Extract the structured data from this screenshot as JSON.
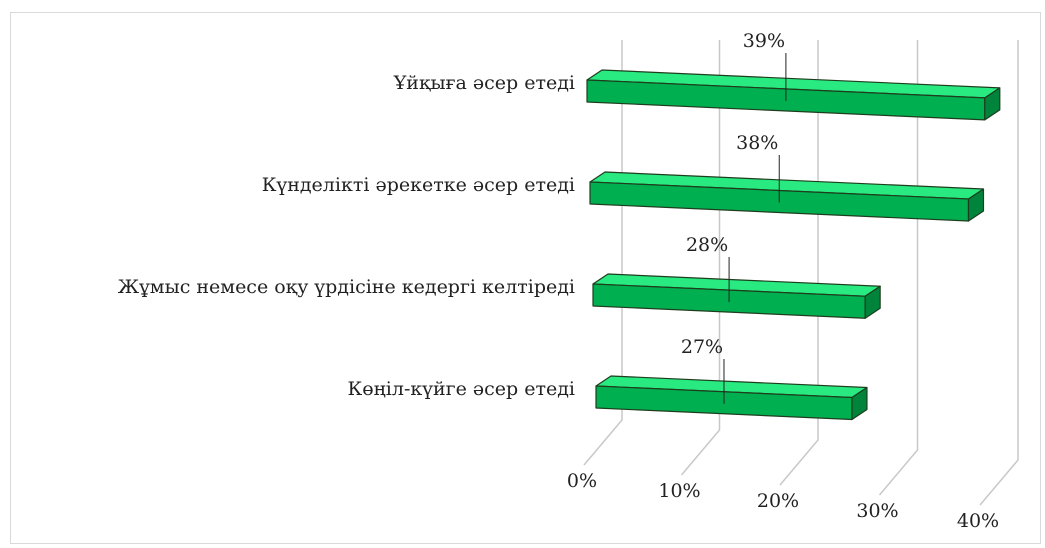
{
  "chart_data": {
    "type": "bar3d",
    "orientation": "horizontal",
    "categories": [
      "Ұйқыға әсер етеді",
      "Күнделікті әрекетке әсер етеді",
      "Жұмыс немесе оқу үрдісіне кедергі келтіреді",
      "Көңіл-күйге әсер етеді"
    ],
    "values": [
      39,
      38,
      28,
      27
    ],
    "value_labels": [
      "39%",
      "38%",
      "28%",
      "27%"
    ],
    "color": "#00b050",
    "xlim": [
      0,
      40
    ],
    "xticks": [
      {
        "value": 0,
        "label": "0%"
      },
      {
        "value": 10,
        "label": "10%"
      },
      {
        "value": 20,
        "label": "20%"
      },
      {
        "value": 30,
        "label": "30%"
      },
      {
        "value": 40,
        "label": "40%"
      }
    ],
    "grid": true
  }
}
